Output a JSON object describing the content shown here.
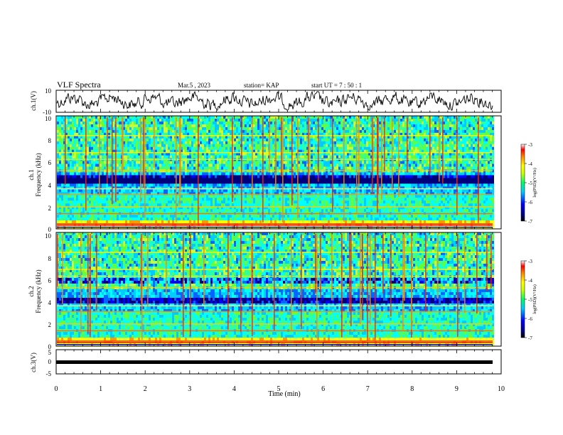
{
  "header": {
    "title": "VLF Spectra",
    "date": "Mar.5 , 2023",
    "station": "station= KAP",
    "start_ut": "start UT = 7 : 50 : 1"
  },
  "colorbar": {
    "label": "log(PSD)(V²/Hz)",
    "ticks": [
      "-3",
      "-4",
      "-5",
      "-6",
      "-7"
    ]
  },
  "colors": {
    "spectrogram_scale": [
      "#00007a",
      "#0000ff",
      "#00aaff",
      "#00ffff",
      "#33ff66",
      "#ccff33",
      "#ffff00",
      "#ff8800",
      "#ff0000",
      "#ffffff"
    ]
  },
  "chart_data": [
    {
      "type": "line",
      "panel": "ch1-waveform",
      "ylabel": "ch.1(V)",
      "ylim": [
        -10,
        10
      ],
      "y_ticks": [
        "10",
        "-10"
      ],
      "xlim": [
        0,
        10
      ],
      "series": [
        {
          "values_range": [
            -10,
            10
          ]
        }
      ]
    },
    {
      "type": "heatmap",
      "panel": "ch1-spectrogram",
      "ylabel": "ch.1\nFrequency (kHz)",
      "ylim": [
        0,
        10
      ],
      "y_ticks": [
        "10",
        "8",
        "6",
        "4",
        "2",
        "0"
      ],
      "xlim": [
        0,
        10
      ],
      "zlim": [
        -7,
        -3
      ],
      "zlabel": "log(PSD)(V²/Hz)"
    },
    {
      "type": "heatmap",
      "panel": "ch2-spectrogram",
      "ylabel": "ch.2\nFrequency (kHz)",
      "ylim": [
        0,
        10
      ],
      "y_ticks": [
        "10",
        "8",
        "6",
        "4",
        "2",
        "0"
      ],
      "xlim": [
        0,
        10
      ],
      "zlim": [
        -7,
        -3
      ],
      "zlabel": "log(PSD)(V²/Hz)"
    },
    {
      "type": "line",
      "panel": "ch3-waveform",
      "ylabel": "ch.3(V)",
      "ylim": [
        -5,
        5
      ],
      "y_ticks": [
        "5",
        "0",
        "-5"
      ],
      "xlim": [
        0,
        10
      ],
      "series": [
        {
          "values_range": [
            -1.3,
            -0.7
          ]
        }
      ]
    }
  ],
  "x_axis": {
    "label": "Time (min)",
    "ticks": [
      "0",
      "1",
      "2",
      "3",
      "4",
      "5",
      "6",
      "7",
      "8",
      "9",
      "10"
    ]
  }
}
